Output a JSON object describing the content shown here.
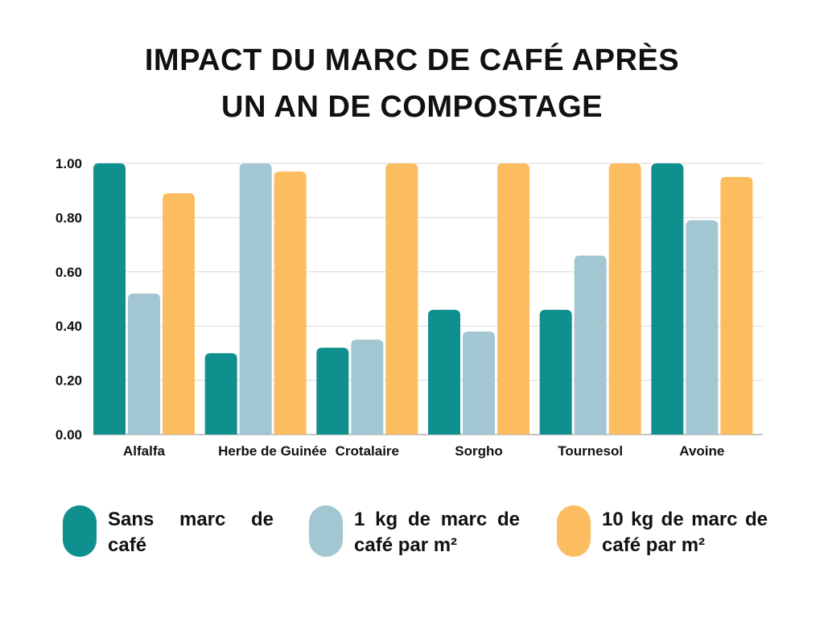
{
  "chart_title": {
    "line1": "IMPACT DU MARC DE CAFÉ APRÈS",
    "line2": "UN AN DE COMPOSTAGE"
  },
  "chart_data": {
    "type": "bar",
    "title": "IMPACT DU MARC DE CAFÉ APRÈS UN AN DE COMPOSTAGE",
    "categories": [
      "Alfalfa",
      "Herbe de Guinée",
      "Crotalaire",
      "Sorgho",
      "Tournesol",
      "Avoine"
    ],
    "series": [
      {
        "name": "Sans marc de café",
        "color": "#108F8F",
        "values": [
          1.0,
          0.3,
          0.32,
          0.46,
          0.46,
          1.0
        ]
      },
      {
        "name": "1 kg de marc de café par m²",
        "color": "#A3C7D2",
        "values": [
          0.52,
          1.0,
          0.35,
          0.38,
          0.66,
          0.79
        ]
      },
      {
        "name": "10 kg de marc de café par m²",
        "color": "#FCBD60",
        "values": [
          0.89,
          0.97,
          1.0,
          1.0,
          1.0,
          0.95
        ]
      }
    ],
    "ylim": [
      0,
      1
    ],
    "yticks": [
      "0.00",
      "0.20",
      "0.40",
      "0.60",
      "0.80",
      "1.00"
    ],
    "grid": true,
    "legend_position": "bottom"
  },
  "legend": [
    {
      "label": "Sans marc de café",
      "color": "#108F8F"
    },
    {
      "label": "1 kg de marc de café par m²",
      "color": "#A3C7D2"
    },
    {
      "label": "10 kg de marc de café par m²",
      "color": "#FCBD60"
    }
  ]
}
